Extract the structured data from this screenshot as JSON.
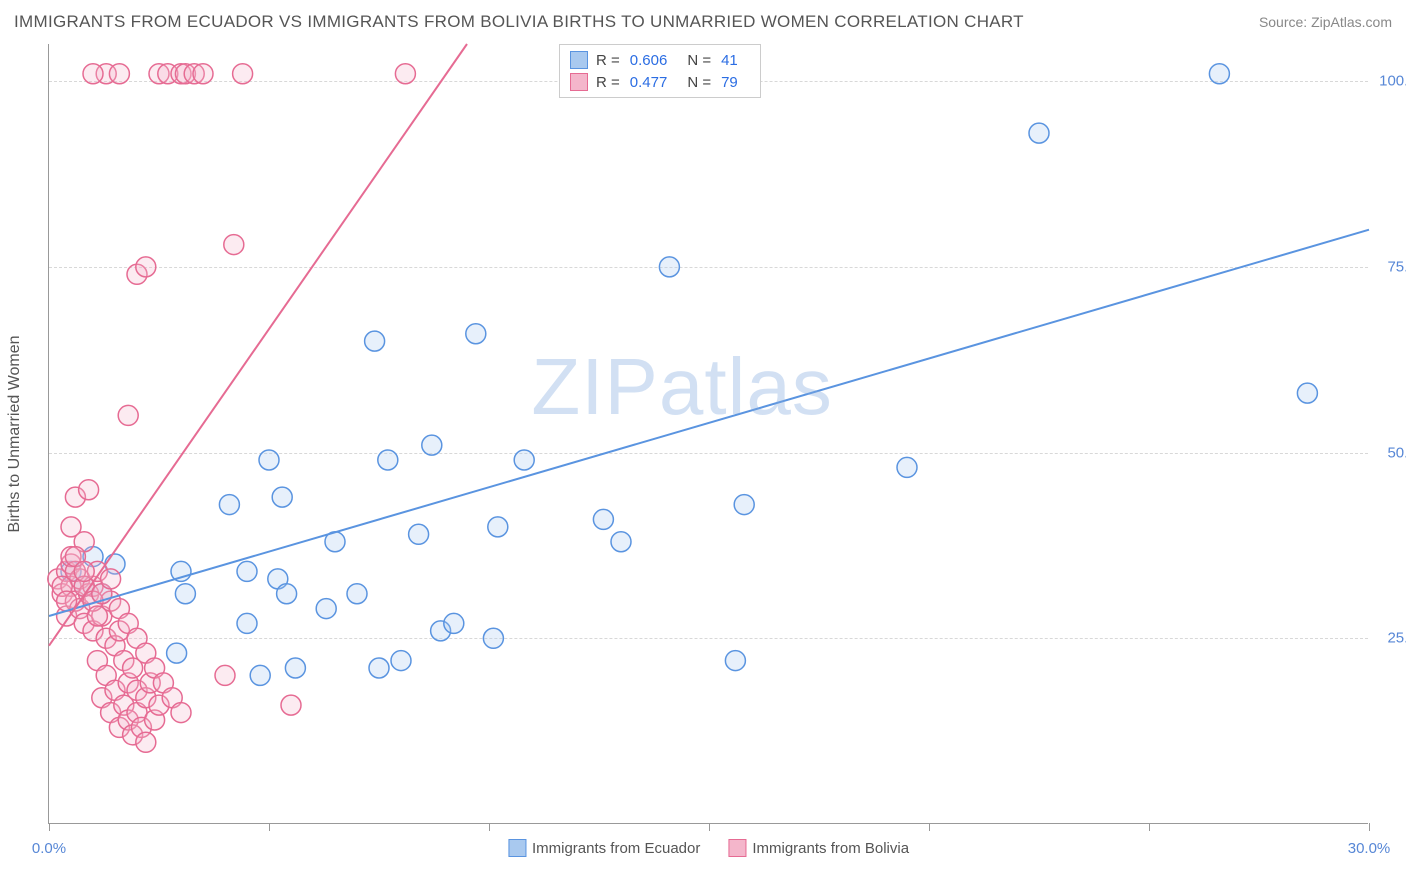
{
  "title": "IMMIGRANTS FROM ECUADOR VS IMMIGRANTS FROM BOLIVIA BIRTHS TO UNMARRIED WOMEN CORRELATION CHART",
  "source": "Source: ZipAtlas.com",
  "watermark": "ZIPatlas",
  "y_axis_label": "Births to Unmarried Women",
  "chart": {
    "type": "scatter",
    "xlim": [
      0,
      30
    ],
    "ylim": [
      0,
      105
    ],
    "x_ticks": [
      0,
      5,
      10,
      15,
      20,
      25,
      30
    ],
    "x_tick_labels": {
      "0": "0.0%",
      "30": "30.0%"
    },
    "y_gridlines": [
      25,
      50,
      75,
      100
    ],
    "y_tick_labels": {
      "25": "25.0%",
      "50": "50.0%",
      "75": "75.0%",
      "100": "100.0%"
    },
    "background_color": "#ffffff",
    "grid_color": "#d8d8d8",
    "axis_color": "#999999",
    "marker_radius": 10,
    "marker_stroke_width": 1.5,
    "marker_fill_opacity": 0.28,
    "line_width": 2
  },
  "series": [
    {
      "name": "Immigrants from Ecuador",
      "color_stroke": "#5a94e0",
      "color_fill": "#a9c9ef",
      "R": "0.606",
      "N": "41",
      "trend": {
        "x1": 0,
        "y1": 28,
        "x2": 30,
        "y2": 80
      },
      "points": [
        [
          0.5,
          34
        ],
        [
          0.8,
          32
        ],
        [
          1.0,
          36
        ],
        [
          1.2,
          31
        ],
        [
          1.5,
          35
        ],
        [
          2.9,
          23
        ],
        [
          3.0,
          34
        ],
        [
          3.1,
          31
        ],
        [
          4.1,
          43
        ],
        [
          4.5,
          34
        ],
        [
          4.5,
          27
        ],
        [
          4.8,
          20
        ],
        [
          5.0,
          49
        ],
        [
          5.2,
          33
        ],
        [
          5.3,
          44
        ],
        [
          5.4,
          31
        ],
        [
          5.6,
          21
        ],
        [
          6.3,
          29
        ],
        [
          6.5,
          38
        ],
        [
          7.0,
          31
        ],
        [
          7.4,
          65
        ],
        [
          7.5,
          21
        ],
        [
          7.7,
          49
        ],
        [
          8.0,
          22
        ],
        [
          8.4,
          39
        ],
        [
          8.7,
          51
        ],
        [
          8.9,
          26
        ],
        [
          9.2,
          27
        ],
        [
          9.7,
          66
        ],
        [
          10.1,
          25
        ],
        [
          10.2,
          40
        ],
        [
          10.8,
          49
        ],
        [
          12.6,
          41
        ],
        [
          13.0,
          38
        ],
        [
          14.1,
          75
        ],
        [
          15.6,
          22
        ],
        [
          15.8,
          43
        ],
        [
          19.5,
          48
        ],
        [
          22.5,
          93
        ],
        [
          26.6,
          101
        ],
        [
          28.6,
          58
        ]
      ]
    },
    {
      "name": "Immigrants from Bolivia",
      "color_stroke": "#e66b93",
      "color_fill": "#f4b6cb",
      "R": "0.477",
      "N": "79",
      "trend": {
        "x1": 0,
        "y1": 24,
        "x2": 9.5,
        "y2": 105
      },
      "points": [
        [
          0.2,
          33
        ],
        [
          0.3,
          31
        ],
        [
          0.4,
          34
        ],
        [
          0.4,
          28
        ],
        [
          0.5,
          40
        ],
        [
          0.5,
          32
        ],
        [
          0.5,
          35
        ],
        [
          0.6,
          44
        ],
        [
          0.6,
          30
        ],
        [
          0.7,
          33
        ],
        [
          0.7,
          29
        ],
        [
          0.8,
          38
        ],
        [
          0.8,
          27
        ],
        [
          0.9,
          45
        ],
        [
          0.9,
          31
        ],
        [
          1.0,
          32
        ],
        [
          1.0,
          26
        ],
        [
          1.1,
          34
        ],
        [
          1.1,
          22
        ],
        [
          1.2,
          28
        ],
        [
          1.2,
          17
        ],
        [
          1.3,
          25
        ],
        [
          1.3,
          20
        ],
        [
          1.4,
          30
        ],
        [
          1.4,
          15
        ],
        [
          1.5,
          24
        ],
        [
          1.5,
          18
        ],
        [
          1.6,
          26
        ],
        [
          1.6,
          13
        ],
        [
          1.7,
          22
        ],
        [
          1.7,
          16
        ],
        [
          1.8,
          19
        ],
        [
          1.8,
          14
        ],
        [
          1.9,
          21
        ],
        [
          1.9,
          12
        ],
        [
          2.0,
          18
        ],
        [
          2.0,
          15
        ],
        [
          2.1,
          13
        ],
        [
          2.2,
          17
        ],
        [
          2.2,
          11
        ],
        [
          2.3,
          19
        ],
        [
          2.4,
          14
        ],
        [
          2.5,
          16
        ],
        [
          1.3,
          101
        ],
        [
          1.6,
          101
        ],
        [
          1.8,
          55
        ],
        [
          2.0,
          74
        ],
        [
          2.2,
          75
        ],
        [
          2.5,
          101
        ],
        [
          2.7,
          101
        ],
        [
          3.0,
          101
        ],
        [
          3.1,
          101
        ],
        [
          3.3,
          101
        ],
        [
          3.5,
          101
        ],
        [
          4.0,
          20
        ],
        [
          4.2,
          78
        ],
        [
          4.4,
          101
        ],
        [
          5.5,
          16
        ],
        [
          1.0,
          101
        ],
        [
          0.5,
          36
        ],
        [
          0.6,
          34
        ],
        [
          0.8,
          32
        ],
        [
          1.0,
          30
        ],
        [
          1.1,
          28
        ],
        [
          1.2,
          31
        ],
        [
          1.4,
          33
        ],
        [
          1.6,
          29
        ],
        [
          1.8,
          27
        ],
        [
          2.0,
          25
        ],
        [
          2.2,
          23
        ],
        [
          2.4,
          21
        ],
        [
          2.6,
          19
        ],
        [
          2.8,
          17
        ],
        [
          3.0,
          15
        ],
        [
          0.3,
          32
        ],
        [
          0.4,
          30
        ],
        [
          0.6,
          36
        ],
        [
          0.8,
          34
        ],
        [
          8.1,
          101
        ]
      ]
    }
  ],
  "legend_top": {
    "r_label": "R =",
    "n_label": "N ="
  }
}
